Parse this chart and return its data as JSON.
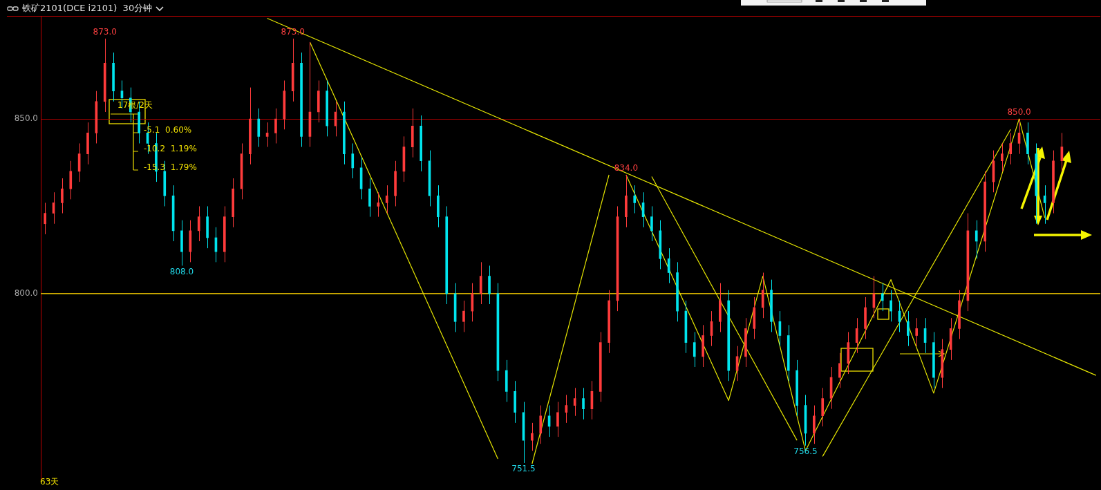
{
  "chart_data": {
    "type": "candlestick",
    "title": "铁矿2101(DCE i2101)  30分钟",
    "categories": [
      null,
      null,
      null,
      null,
      null,
      null,
      null,
      null,
      null,
      null,
      null,
      null,
      null,
      null,
      null,
      null,
      null,
      null,
      null,
      null,
      null,
      null,
      null,
      null,
      null,
      null,
      null,
      null,
      null,
      null,
      null,
      null,
      null,
      null,
      null,
      null,
      null,
      null,
      null,
      null,
      null,
      null,
      null,
      null,
      null,
      null,
      null,
      null,
      null,
      null,
      null,
      null,
      null,
      null,
      null,
      null,
      null,
      null,
      null,
      null,
      null,
      null,
      null,
      null,
      null,
      null,
      null,
      null,
      null,
      null,
      null,
      null,
      null,
      null,
      null,
      null,
      null,
      null,
      null,
      null,
      null,
      null,
      null,
      null,
      null,
      null,
      null,
      null,
      null,
      null,
      null,
      null,
      null,
      null,
      null,
      null,
      null,
      null,
      null,
      null,
      null,
      null,
      null,
      null,
      null,
      null,
      null,
      null,
      null,
      null,
      null,
      null,
      null,
      null,
      null,
      null,
      null,
      null,
      null,
      null,
      null,
      null,
      null,
      null
    ],
    "ohlc": [
      [
        820,
        826,
        817,
        823
      ],
      [
        823,
        829,
        820,
        826
      ],
      [
        826,
        833,
        823,
        830
      ],
      [
        830,
        838,
        827,
        835
      ],
      [
        835,
        843,
        832,
        840
      ],
      [
        840,
        849,
        837,
        846
      ],
      [
        846,
        858,
        843,
        855
      ],
      [
        855,
        873,
        852,
        866
      ],
      [
        866,
        869,
        855,
        858
      ],
      [
        858,
        861,
        853,
        856
      ],
      [
        856,
        859,
        849,
        852
      ],
      [
        852,
        855,
        843,
        846
      ],
      [
        846,
        849,
        840,
        843
      ],
      [
        843,
        846,
        832,
        835
      ],
      [
        835,
        838,
        825,
        828
      ],
      [
        828,
        831,
        815,
        818
      ],
      [
        818,
        821,
        808,
        812
      ],
      [
        812,
        821,
        809,
        818
      ],
      [
        818,
        825,
        815,
        822
      ],
      [
        822,
        825,
        813,
        816
      ],
      [
        816,
        819,
        809,
        812
      ],
      [
        812,
        825,
        809,
        822
      ],
      [
        822,
        833,
        819,
        830
      ],
      [
        830,
        843,
        827,
        840
      ],
      [
        840,
        859,
        837,
        850
      ],
      [
        850,
        853,
        842,
        845
      ],
      [
        845,
        849,
        842,
        846
      ],
      [
        846,
        853,
        843,
        850
      ],
      [
        850,
        861,
        847,
        858
      ],
      [
        858,
        873,
        855,
        866
      ],
      [
        866,
        869,
        842,
        845
      ],
      [
        845,
        872,
        842,
        852
      ],
      [
        852,
        861,
        849,
        858
      ],
      [
        858,
        861,
        845,
        848
      ],
      [
        848,
        855,
        845,
        852
      ],
      [
        852,
        855,
        837,
        840
      ],
      [
        840,
        843,
        833,
        836
      ],
      [
        836,
        839,
        827,
        830
      ],
      [
        830,
        833,
        822,
        825
      ],
      [
        825,
        829,
        822,
        826
      ],
      [
        826,
        831,
        823,
        828
      ],
      [
        828,
        838,
        825,
        835
      ],
      [
        835,
        845,
        832,
        842
      ],
      [
        842,
        853,
        839,
        848
      ],
      [
        848,
        851,
        835,
        838
      ],
      [
        838,
        841,
        825,
        828
      ],
      [
        828,
        831,
        819,
        822
      ],
      [
        822,
        825,
        797,
        800
      ],
      [
        800,
        803,
        789,
        792
      ],
      [
        792,
        798,
        789,
        795
      ],
      [
        795,
        803,
        792,
        800
      ],
      [
        800,
        809,
        797,
        805
      ],
      [
        805,
        808,
        797,
        800
      ],
      [
        800,
        803,
        775,
        778
      ],
      [
        778,
        781,
        769,
        772
      ],
      [
        772,
        775,
        763,
        766
      ],
      [
        766,
        769,
        751.5,
        758
      ],
      [
        758,
        763,
        755,
        760
      ],
      [
        760,
        768,
        757,
        765
      ],
      [
        765,
        768,
        759,
        762
      ],
      [
        762,
        769,
        759,
        766
      ],
      [
        766,
        771,
        763,
        768
      ],
      [
        768,
        773,
        765,
        770
      ],
      [
        770,
        773,
        764,
        767
      ],
      [
        767,
        775,
        764,
        772
      ],
      [
        772,
        789,
        769,
        786
      ],
      [
        786,
        801,
        783,
        798
      ],
      [
        798,
        825,
        795,
        822
      ],
      [
        822,
        834,
        819,
        828
      ],
      [
        828,
        831,
        823,
        826
      ],
      [
        826,
        829,
        819,
        822
      ],
      [
        822,
        825,
        815,
        818
      ],
      [
        818,
        821,
        807,
        810
      ],
      [
        810,
        813,
        803,
        806
      ],
      [
        806,
        809,
        792,
        795
      ],
      [
        795,
        798,
        783,
        786
      ],
      [
        786,
        789,
        779,
        782
      ],
      [
        782,
        791,
        779,
        788
      ],
      [
        788,
        795,
        785,
        792
      ],
      [
        792,
        803,
        789,
        798
      ],
      [
        798,
        801,
        775,
        778
      ],
      [
        778,
        785,
        775,
        782
      ],
      [
        782,
        793,
        779,
        790
      ],
      [
        790,
        799,
        787,
        796
      ],
      [
        796,
        806,
        793,
        801
      ],
      [
        801,
        804,
        789,
        792
      ],
      [
        792,
        795,
        785,
        788
      ],
      [
        788,
        791,
        775,
        778
      ],
      [
        778,
        781,
        765,
        768
      ],
      [
        768,
        771,
        756.5,
        760
      ],
      [
        760,
        768,
        757,
        765
      ],
      [
        765,
        773,
        762,
        770
      ],
      [
        770,
        779,
        767,
        776
      ],
      [
        776,
        783,
        773,
        780
      ],
      [
        780,
        789,
        777,
        786
      ],
      [
        786,
        793,
        783,
        790
      ],
      [
        790,
        799,
        787,
        796
      ],
      [
        796,
        805,
        793,
        800
      ],
      [
        800,
        803,
        795,
        798
      ],
      [
        798,
        801,
        792,
        795
      ],
      [
        795,
        798,
        789,
        792
      ],
      [
        792,
        795,
        785,
        788
      ],
      [
        788,
        793,
        785,
        790
      ],
      [
        790,
        793,
        783,
        786
      ],
      [
        786,
        789,
        773,
        776
      ],
      [
        776,
        787,
        773,
        784
      ],
      [
        784,
        793,
        781,
        790
      ],
      [
        790,
        801,
        787,
        798
      ],
      [
        798,
        823,
        795,
        818
      ],
      [
        818,
        821,
        810,
        815
      ],
      [
        815,
        835,
        812,
        832
      ],
      [
        832,
        841,
        829,
        838
      ],
      [
        838,
        843,
        835,
        840
      ],
      [
        840,
        846,
        837,
        843
      ],
      [
        843,
        850,
        840,
        846
      ],
      [
        846,
        849,
        837,
        840
      ],
      [
        840,
        843,
        820,
        828
      ],
      [
        828,
        831,
        820,
        826
      ],
      [
        826,
        841,
        823,
        838
      ],
      [
        838,
        846,
        835,
        842
      ],
      null,
      null,
      null,
      null
    ],
    "colors": [
      "#ff3b3b",
      "#ff3b3b",
      "#ff3b3b",
      "#ff3b3b",
      "#ff3b3b",
      "#ff3b3b",
      "#ff3b3b",
      "#ff3b3b",
      "#00e5ee",
      "#00e5ee",
      "#00e5ee",
      "#00e5ee",
      "#00e5ee",
      "#00e5ee",
      "#00e5ee",
      "#00e5ee",
      "#00e5ee",
      "#ff3b3b",
      "#ff3b3b",
      "#00e5ee",
      "#00e5ee",
      "#ff3b3b",
      "#ff3b3b",
      "#ff3b3b",
      "#ff3b3b",
      "#00e5ee",
      "#ff3b3b",
      "#ff3b3b",
      "#ff3b3b",
      "#ff3b3b",
      "#00e5ee",
      "#ff3b3b",
      "#ff3b3b",
      "#00e5ee",
      "#ff3b3b",
      "#00e5ee",
      "#00e5ee",
      "#00e5ee",
      "#00e5ee",
      "#ff3b3b",
      "#ff3b3b",
      "#ff3b3b",
      "#ff3b3b",
      "#ff3b3b",
      "#00e5ee",
      "#00e5ee",
      "#00e5ee",
      "#00e5ee",
      "#00e5ee",
      "#ff3b3b",
      "#ff3b3b",
      "#ff3b3b",
      "#00e5ee",
      "#00e5ee",
      "#00e5ee",
      "#00e5ee",
      "#00e5ee",
      "#ff3b3b",
      "#ff3b3b",
      "#00e5ee",
      "#ff3b3b",
      "#ff3b3b",
      "#ff3b3b",
      "#00e5ee",
      "#ff3b3b",
      "#ff3b3b",
      "#ff3b3b",
      "#ff3b3b",
      "#ff3b3b",
      "#00e5ee",
      "#00e5ee",
      "#00e5ee",
      "#00e5ee",
      "#00e5ee",
      "#00e5ee",
      "#00e5ee",
      "#00e5ee",
      "#ff3b3b",
      "#ff3b3b",
      "#ff3b3b",
      "#00e5ee",
      "#ff3b3b",
      "#ff3b3b",
      "#ff3b3b",
      "#ff3b3b",
      "#00e5ee",
      "#00e5ee",
      "#00e5ee",
      "#00e5ee",
      "#00e5ee",
      "#ff3b3b",
      "#ff3b3b",
      "#ff3b3b",
      "#ff3b3b",
      "#ff3b3b",
      "#ff3b3b",
      "#ff3b3b",
      "#ff3b3b",
      "#00e5ee",
      "#00e5ee",
      "#00e5ee",
      "#00e5ee",
      "#ff3b3b",
      "#00e5ee",
      "#00e5ee",
      "#ff3b3b",
      "#ff3b3b",
      "#ff3b3b",
      "#ff3b3b",
      "#00e5ee",
      "#ff3b3b",
      "#ff3b3b",
      "#ff3b3b",
      "#ff3b3b",
      "#ff3b3b",
      "#00e5ee",
      "#00e5ee",
      "#00e5ee",
      "#ff3b3b",
      "#ff3b3b",
      null,
      null,
      null,
      null
    ],
    "series": [
      {
        "type": "line",
        "color": "#e6e600",
        "values": [
          null,
          null,
          null,
          null,
          null,
          null,
          null,
          null,
          null,
          null,
          null,
          null,
          null,
          null,
          null,
          null,
          null,
          null,
          null,
          null,
          null,
          null,
          null,
          null,
          null,
          null,
          878.8,
          null,
          null,
          null,
          null,
          null,
          null,
          null,
          null,
          null,
          null,
          null,
          null,
          null,
          null,
          null,
          null,
          null,
          null,
          null,
          null,
          null,
          null,
          null,
          null,
          null,
          null,
          null,
          null,
          null,
          null,
          null,
          null,
          null,
          null,
          null,
          null,
          null,
          null,
          null,
          null,
          null,
          null,
          null,
          null,
          null,
          null,
          null,
          null,
          null,
          null,
          null,
          null,
          null,
          null,
          null,
          null,
          null,
          null,
          null,
          null,
          null,
          null,
          null,
          null,
          null,
          null,
          null,
          null,
          null,
          null,
          null,
          null,
          null,
          null,
          null,
          null,
          null,
          null,
          null,
          null,
          null,
          null,
          null,
          null,
          null,
          null,
          null,
          null,
          null,
          null,
          null,
          null,
          null,
          null,
          null,
          null,
          776.6
        ]
      },
      {
        "type": "line",
        "color": "#e6e600",
        "values": [
          null,
          null,
          null,
          null,
          null,
          null,
          null,
          null,
          null,
          null,
          null,
          null,
          null,
          null,
          null,
          null,
          null,
          null,
          null,
          null,
          null,
          null,
          null,
          null,
          null,
          null,
          null,
          null,
          null,
          null,
          null,
          872,
          null,
          null,
          null,
          null,
          null,
          null,
          null,
          null,
          null,
          null,
          null,
          null,
          null,
          null,
          null,
          null,
          null,
          null,
          null,
          null,
          null,
          752.7,
          null,
          null,
          null,
          null,
          null,
          null,
          null,
          null,
          null,
          null,
          null,
          null,
          null,
          null,
          null,
          null,
          null,
          null,
          null,
          null,
          null,
          null,
          null,
          null,
          null,
          null,
          null,
          null,
          null,
          null,
          null,
          null,
          null,
          null,
          null,
          null,
          null,
          null,
          null,
          null,
          null,
          null,
          null,
          null,
          null,
          null,
          null,
          null,
          null,
          null,
          null,
          null,
          null,
          null,
          null,
          null,
          null,
          null,
          null,
          null,
          null,
          null,
          null,
          null,
          null,
          null,
          null,
          null,
          null,
          null
        ]
      },
      {
        "type": "line",
        "color": "#e6e600",
        "values": [
          null,
          null,
          null,
          null,
          null,
          null,
          null,
          null,
          null,
          null,
          null,
          null,
          null,
          null,
          null,
          null,
          null,
          null,
          null,
          null,
          null,
          null,
          null,
          null,
          null,
          null,
          null,
          null,
          null,
          null,
          null,
          null,
          null,
          null,
          null,
          null,
          null,
          null,
          null,
          null,
          null,
          null,
          null,
          null,
          null,
          null,
          null,
          null,
          null,
          null,
          null,
          null,
          null,
          null,
          null,
          null,
          null,
          751.3,
          null,
          null,
          null,
          null,
          null,
          null,
          null,
          null,
          834,
          null,
          null,
          null,
          null,
          null,
          null,
          null,
          null,
          null,
          null,
          null,
          null,
          null,
          null,
          null,
          null,
          null,
          null,
          null,
          null,
          null,
          null,
          null,
          null,
          null,
          null,
          null,
          null,
          null,
          null,
          null,
          null,
          null,
          null,
          null,
          null,
          null,
          null,
          null,
          null,
          null,
          null,
          null,
          null,
          null,
          null,
          null,
          null,
          null,
          null,
          null,
          null,
          null,
          null,
          null,
          null,
          null
        ]
      },
      {
        "type": "line",
        "color": "#e6e600",
        "values": [
          null,
          null,
          null,
          null,
          null,
          null,
          null,
          null,
          null,
          null,
          null,
          null,
          null,
          null,
          null,
          null,
          null,
          null,
          null,
          null,
          null,
          null,
          null,
          null,
          null,
          null,
          null,
          null,
          null,
          null,
          null,
          null,
          null,
          null,
          null,
          null,
          null,
          null,
          null,
          null,
          null,
          null,
          null,
          null,
          null,
          null,
          null,
          null,
          null,
          null,
          null,
          null,
          null,
          null,
          null,
          null,
          null,
          null,
          null,
          null,
          null,
          null,
          null,
          null,
          null,
          null,
          null,
          null,
          834,
          null,
          null,
          null,
          null,
          null,
          null,
          null,
          null,
          null,
          null,
          null,
          769.4,
          null,
          null,
          null,
          805,
          null,
          null,
          null,
          null,
          755,
          null,
          null,
          null,
          null,
          null,
          null,
          null,
          null,
          null,
          804,
          null,
          null,
          null,
          null,
          771.5,
          null,
          null,
          null,
          null,
          null,
          null,
          null,
          null,
          null,
          850,
          null,
          null,
          821.7,
          null,
          null,
          null,
          null,
          null,
          null
        ]
      },
      {
        "type": "line",
        "color": "#e6e600",
        "values": [
          null,
          null,
          null,
          null,
          null,
          null,
          null,
          null,
          null,
          null,
          null,
          null,
          null,
          null,
          null,
          null,
          null,
          null,
          null,
          null,
          null,
          null,
          null,
          null,
          null,
          null,
          null,
          null,
          null,
          null,
          null,
          null,
          null,
          null,
          null,
          null,
          null,
          null,
          null,
          null,
          null,
          null,
          null,
          null,
          null,
          null,
          null,
          null,
          null,
          null,
          null,
          null,
          null,
          null,
          null,
          null,
          null,
          null,
          null,
          null,
          null,
          null,
          null,
          null,
          null,
          null,
          null,
          null,
          null,
          null,
          null,
          833.5,
          null,
          null,
          null,
          null,
          null,
          null,
          null,
          null,
          null,
          null,
          null,
          null,
          null,
          null,
          null,
          null,
          758,
          null,
          null,
          null,
          null,
          null,
          null,
          null,
          null,
          null,
          null,
          null,
          null,
          null,
          null,
          null,
          null,
          null,
          null,
          null,
          null,
          null,
          null,
          null,
          null,
          null,
          null,
          null,
          null,
          null,
          null,
          null,
          null,
          null,
          null,
          null
        ]
      },
      {
        "type": "line",
        "color": "#e6e600",
        "values": [
          null,
          null,
          null,
          null,
          null,
          null,
          null,
          null,
          null,
          null,
          null,
          null,
          null,
          null,
          null,
          null,
          null,
          null,
          null,
          null,
          null,
          null,
          null,
          null,
          null,
          null,
          null,
          null,
          null,
          null,
          null,
          null,
          null,
          null,
          null,
          null,
          null,
          null,
          null,
          null,
          null,
          null,
          null,
          null,
          null,
          null,
          null,
          null,
          null,
          null,
          null,
          null,
          null,
          null,
          null,
          null,
          null,
          null,
          null,
          null,
          null,
          null,
          null,
          null,
          null,
          null,
          null,
          null,
          null,
          null,
          null,
          null,
          null,
          null,
          null,
          null,
          null,
          null,
          null,
          null,
          null,
          null,
          null,
          null,
          null,
          null,
          null,
          null,
          null,
          null,
          null,
          753.4,
          null,
          null,
          null,
          null,
          null,
          null,
          null,
          null,
          null,
          null,
          null,
          null,
          null,
          null,
          null,
          null,
          null,
          null,
          null,
          null,
          null,
          847,
          null,
          null,
          null,
          null,
          null,
          null,
          null,
          null,
          null,
          null
        ]
      }
    ],
    "ylim": [
      746,
      879.5
    ],
    "yticks": [
      {
        "value": 800,
        "label": "800.0"
      },
      {
        "value": 850,
        "label": "850.0"
      }
    ],
    "tick_labels": "y",
    "grid": "y",
    "ref_lines": [
      {
        "axis": "y",
        "value": 800,
        "color": "#e6e600"
      }
    ],
    "annotations": [
      {
        "text": "873.0",
        "y": 873
      },
      {
        "text": "808.0",
        "y": 808
      },
      {
        "text": "873.0",
        "y": 873
      },
      {
        "text": "751.5",
        "y": 751.5
      },
      {
        "text": "834.0",
        "y": 834
      },
      {
        "text": "756.5",
        "y": 756.5
      },
      {
        "text": "850.0",
        "y": 850
      },
      "17根/2天",
      "-5.1  0.60%",
      "-10.2  1.19%",
      "-15.3  1.79%",
      "63天"
    ]
  }
}
